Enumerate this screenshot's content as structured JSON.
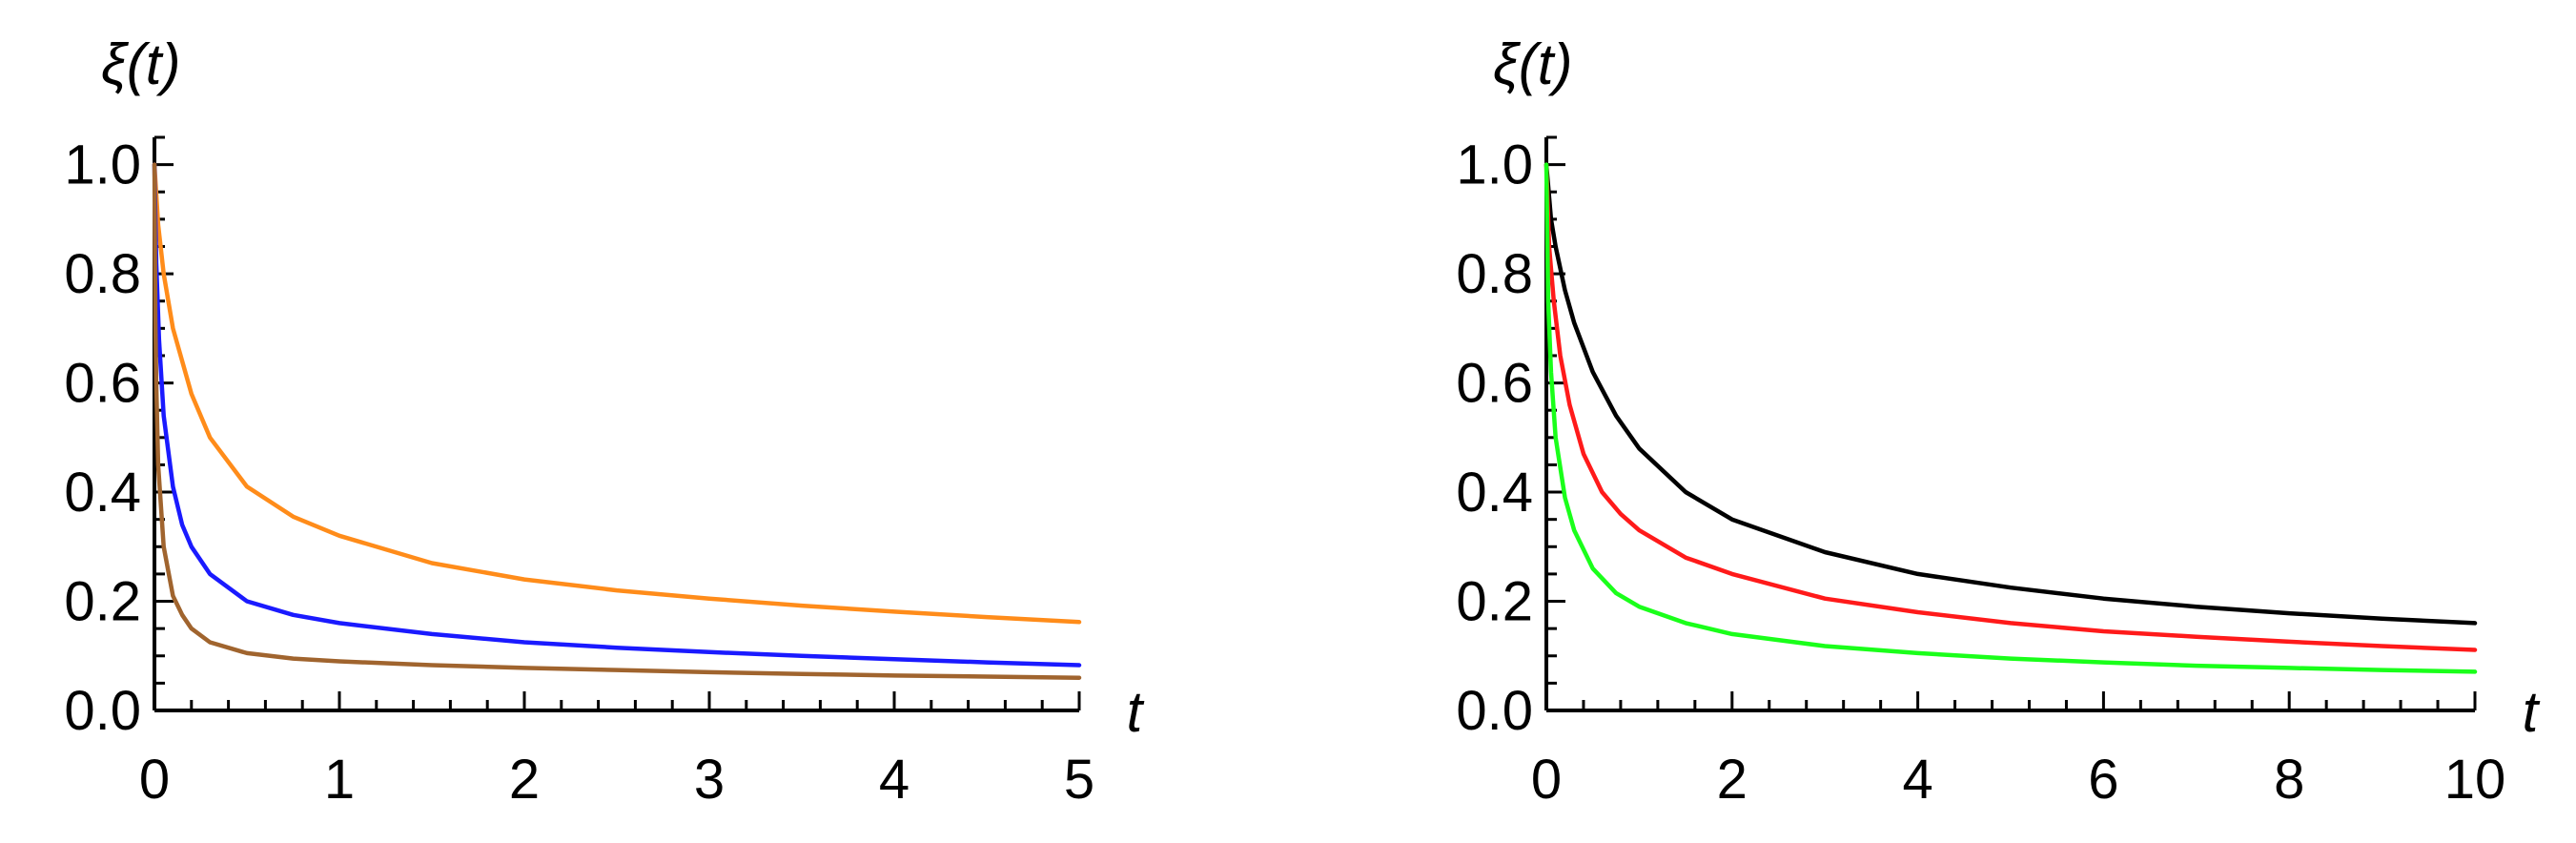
{
  "chart_data": [
    {
      "id": "left",
      "type": "line",
      "ylabel": "ξ(t)",
      "xlabel": "t",
      "xlim": [
        0,
        5
      ],
      "ylim": [
        0,
        1.05
      ],
      "xticks": [
        0,
        1,
        2,
        3,
        4,
        5
      ],
      "xtick_labels": [
        "0",
        "1",
        "2",
        "3",
        "4",
        "5"
      ],
      "yticks": [
        0.0,
        0.2,
        0.4,
        0.6,
        0.8,
        1.0
      ],
      "ytick_labels": [
        "0.0",
        "0.2",
        "0.4",
        "0.6",
        "0.8",
        "1.0"
      ],
      "grid": false,
      "series": [
        {
          "name": "orange",
          "color": "#ff8c1a",
          "x": [
            0,
            0.02,
            0.05,
            0.1,
            0.2,
            0.3,
            0.5,
            0.75,
            1,
            1.5,
            2,
            2.5,
            3,
            3.5,
            4,
            4.5,
            5
          ],
          "y": [
            1.0,
            0.89,
            0.8,
            0.7,
            0.58,
            0.5,
            0.41,
            0.355,
            0.32,
            0.27,
            0.24,
            0.22,
            0.205,
            0.192,
            0.181,
            0.171,
            0.162
          ]
        },
        {
          "name": "blue",
          "color": "#1a1aff",
          "x": [
            0,
            0.01,
            0.025,
            0.05,
            0.1,
            0.15,
            0.2,
            0.3,
            0.5,
            0.75,
            1,
            1.5,
            2,
            2.5,
            3,
            3.5,
            4,
            4.5,
            5
          ],
          "y": [
            1.0,
            0.82,
            0.68,
            0.54,
            0.41,
            0.34,
            0.3,
            0.25,
            0.2,
            0.175,
            0.16,
            0.14,
            0.125,
            0.115,
            0.107,
            0.1,
            0.094,
            0.088,
            0.083
          ]
        },
        {
          "name": "brown",
          "color": "#a0642e",
          "x": [
            0,
            0.005,
            0.01,
            0.02,
            0.05,
            0.1,
            0.15,
            0.2,
            0.3,
            0.5,
            0.75,
            1,
            1.5,
            2,
            2.5,
            3,
            3.5,
            4,
            4.5,
            5
          ],
          "y": [
            1.0,
            0.72,
            0.6,
            0.45,
            0.3,
            0.21,
            0.175,
            0.15,
            0.125,
            0.105,
            0.095,
            0.09,
            0.083,
            0.078,
            0.074,
            0.07,
            0.067,
            0.064,
            0.062,
            0.06
          ]
        }
      ]
    },
    {
      "id": "right",
      "type": "line",
      "ylabel": "ξ(t)",
      "xlabel": "t",
      "xlim": [
        0,
        10
      ],
      "ylim": [
        0,
        1.05
      ],
      "xticks": [
        0,
        2,
        4,
        6,
        8,
        10
      ],
      "xtick_labels": [
        "0",
        "2",
        "4",
        "6",
        "8",
        "10"
      ],
      "yticks": [
        0.0,
        0.2,
        0.4,
        0.6,
        0.8,
        1.0
      ],
      "ytick_labels": [
        "0.0",
        "0.2",
        "0.4",
        "0.6",
        "0.8",
        "1.0"
      ],
      "grid": false,
      "series": [
        {
          "name": "black",
          "color": "#000000",
          "x": [
            0,
            0.05,
            0.1,
            0.2,
            0.3,
            0.5,
            0.75,
            1,
            1.5,
            2,
            3,
            4,
            5,
            6,
            7,
            8,
            9,
            10
          ],
          "y": [
            1.0,
            0.9,
            0.85,
            0.77,
            0.71,
            0.62,
            0.54,
            0.48,
            0.4,
            0.35,
            0.29,
            0.25,
            0.225,
            0.205,
            0.19,
            0.178,
            0.168,
            0.16
          ]
        },
        {
          "name": "red",
          "color": "#ff1a1a",
          "x": [
            0,
            0.03,
            0.08,
            0.15,
            0.25,
            0.4,
            0.6,
            0.8,
            1,
            1.5,
            2,
            3,
            4,
            5,
            6,
            7,
            8,
            9,
            10
          ],
          "y": [
            1.0,
            0.85,
            0.75,
            0.65,
            0.56,
            0.47,
            0.4,
            0.36,
            0.33,
            0.28,
            0.25,
            0.205,
            0.18,
            0.16,
            0.145,
            0.135,
            0.126,
            0.118,
            0.111
          ]
        },
        {
          "name": "green",
          "color": "#1aff1a",
          "x": [
            0,
            0.02,
            0.05,
            0.1,
            0.2,
            0.3,
            0.5,
            0.75,
            1,
            1.5,
            2,
            3,
            4,
            5,
            6,
            7,
            8,
            9,
            10
          ],
          "y": [
            1.0,
            0.75,
            0.62,
            0.5,
            0.39,
            0.33,
            0.26,
            0.215,
            0.19,
            0.16,
            0.14,
            0.118,
            0.105,
            0.095,
            0.088,
            0.082,
            0.078,
            0.074,
            0.071
          ]
        }
      ]
    }
  ]
}
